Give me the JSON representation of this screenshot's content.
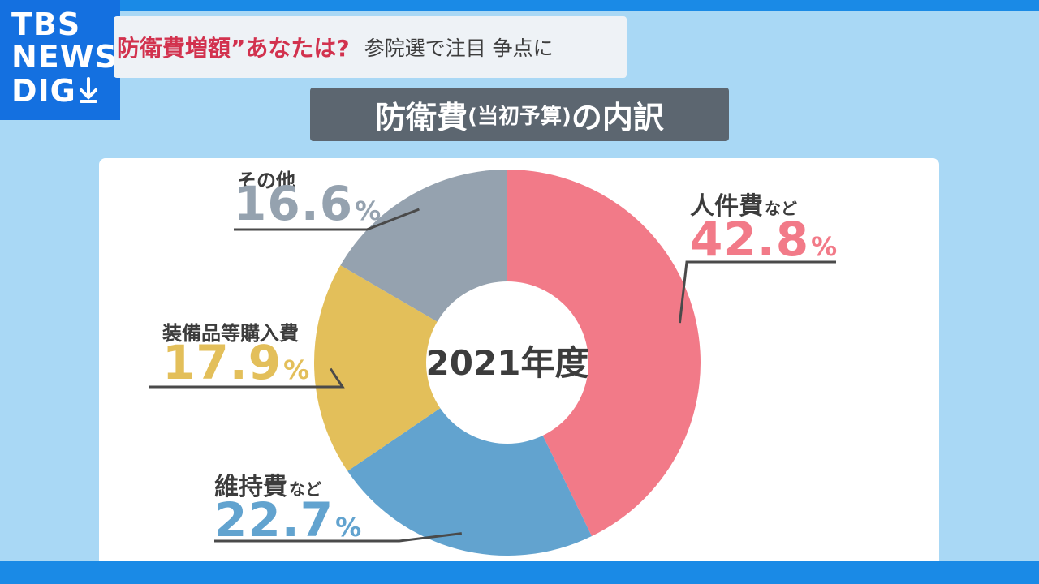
{
  "logo": {
    "line1": "TBS",
    "line2": "NEWS",
    "line3": "DIG"
  },
  "headline": {
    "emphasis": "防衛費増額”あなたは?",
    "rest": "参院選で注目 争点に"
  },
  "title": {
    "main": "防衛費",
    "paren": "(当初予算)",
    "tail": "の内訳"
  },
  "chart_data": {
    "type": "pie",
    "variant": "donut",
    "center_label": "2021年度",
    "unit": "%",
    "start": "12 o'clock, clockwise",
    "slices": [
      {
        "label": "人件費",
        "suffix": "など",
        "value": 42.8,
        "value_text": "42.8",
        "color": "#f27a88"
      },
      {
        "label": "維持費",
        "suffix": "など",
        "value": 22.7,
        "value_text": "22.7",
        "color": "#62a3cf"
      },
      {
        "label": "装備品等購入費",
        "suffix": "",
        "value": 17.9,
        "value_text": "17.9",
        "color": "#e3bf5a"
      },
      {
        "label": "その他",
        "suffix": "",
        "value": 16.6,
        "value_text": "16.6",
        "color": "#95a2af"
      }
    ]
  }
}
